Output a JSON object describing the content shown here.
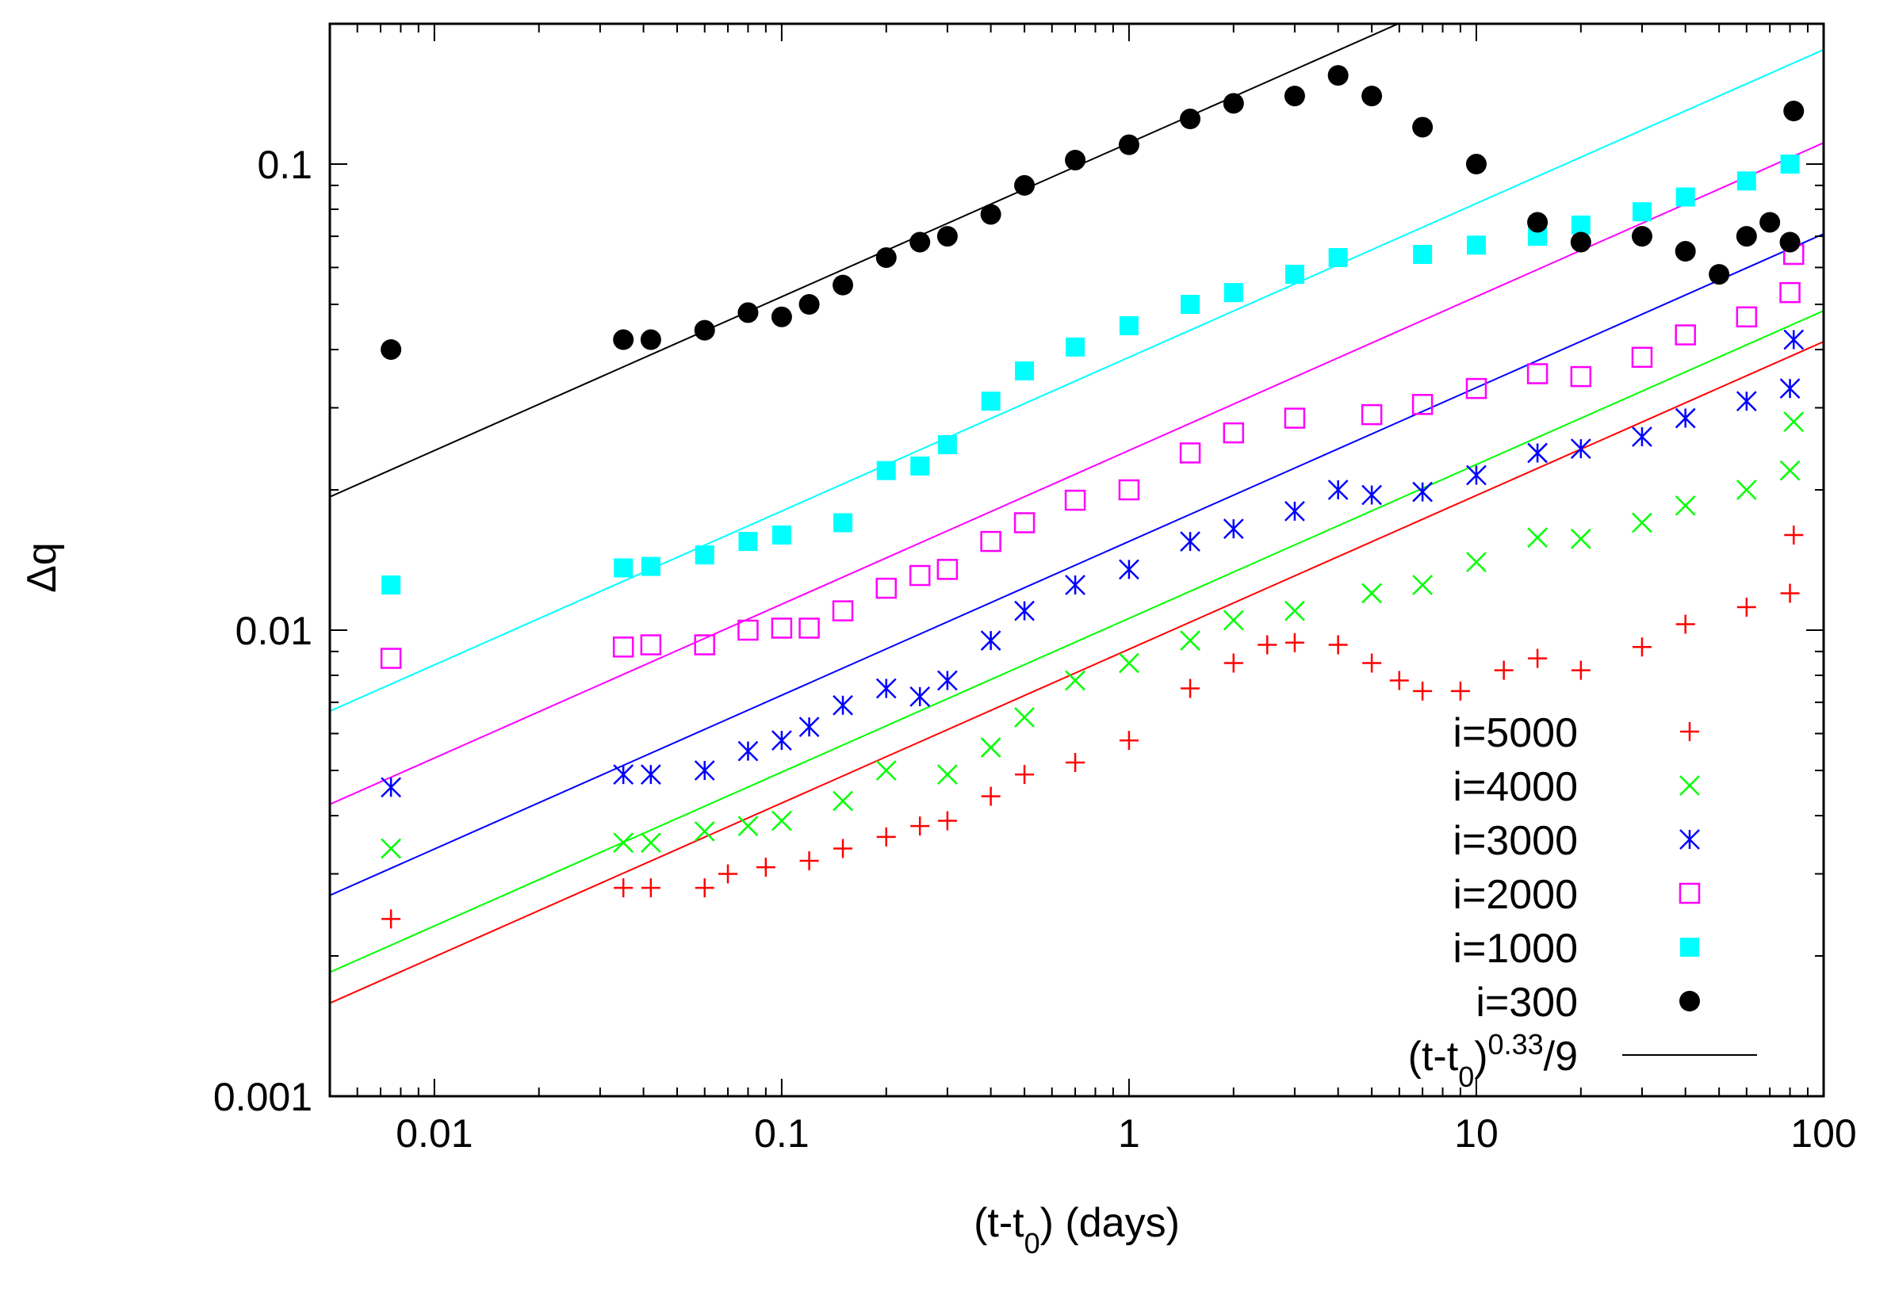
{
  "chart_data": {
    "type": "scatter",
    "xlabel": "(t-t0) (days)",
    "ylabel": "Δq",
    "x_scale": "log",
    "y_scale": "log",
    "xlim": [
      0.005,
      100
    ],
    "ylim": [
      0.001,
      0.2
    ],
    "x_ticks": [
      "0.01",
      "0.1",
      "1",
      "10",
      "100"
    ],
    "y_ticks": [
      "0.001",
      "0.01",
      "0.1"
    ],
    "grid": false,
    "legend_position": "bottom-right",
    "series": [
      {
        "name": "i=5000",
        "marker": "plus",
        "color": "#ff0000",
        "fit_coefficient": 0.0091,
        "points": [
          [
            0.0075,
            0.0024
          ],
          [
            0.035,
            0.0028
          ],
          [
            0.042,
            0.0028
          ],
          [
            0.06,
            0.0028
          ],
          [
            0.07,
            0.003
          ],
          [
            0.09,
            0.0031
          ],
          [
            0.12,
            0.0032
          ],
          [
            0.15,
            0.0034
          ],
          [
            0.2,
            0.0036
          ],
          [
            0.25,
            0.0038
          ],
          [
            0.3,
            0.0039
          ],
          [
            0.4,
            0.0044
          ],
          [
            0.5,
            0.0049
          ],
          [
            0.7,
            0.0052
          ],
          [
            1.0,
            0.0058
          ],
          [
            1.5,
            0.0075
          ],
          [
            2.0,
            0.0085
          ],
          [
            2.5,
            0.0093
          ],
          [
            3.0,
            0.0094
          ],
          [
            4.0,
            0.0093
          ],
          [
            5.0,
            0.0085
          ],
          [
            6.0,
            0.0078
          ],
          [
            7.0,
            0.0074
          ],
          [
            9.0,
            0.0074
          ],
          [
            12.0,
            0.0082
          ],
          [
            15.0,
            0.0087
          ],
          [
            20.0,
            0.0082
          ],
          [
            30.0,
            0.0092
          ],
          [
            40.0,
            0.0103
          ],
          [
            60.0,
            0.0112
          ],
          [
            80.0,
            0.012
          ],
          [
            82.0,
            0.016
          ]
        ]
      },
      {
        "name": "i=4000",
        "marker": "cross",
        "color": "#00ff00",
        "fit_coefficient": 0.0106,
        "points": [
          [
            0.0075,
            0.0034
          ],
          [
            0.035,
            0.0035
          ],
          [
            0.042,
            0.0035
          ],
          [
            0.06,
            0.0037
          ],
          [
            0.08,
            0.0038
          ],
          [
            0.1,
            0.0039
          ],
          [
            0.15,
            0.0043
          ],
          [
            0.2,
            0.005
          ],
          [
            0.3,
            0.0049
          ],
          [
            0.4,
            0.0056
          ],
          [
            0.5,
            0.0065
          ],
          [
            0.7,
            0.0078
          ],
          [
            1.0,
            0.0085
          ],
          [
            1.5,
            0.0095
          ],
          [
            2.0,
            0.0105
          ],
          [
            3.0,
            0.011
          ],
          [
            5.0,
            0.012
          ],
          [
            7.0,
            0.0125
          ],
          [
            10.0,
            0.014
          ],
          [
            15.0,
            0.0158
          ],
          [
            20.0,
            0.0157
          ],
          [
            30.0,
            0.017
          ],
          [
            40.0,
            0.0185
          ],
          [
            60.0,
            0.02
          ],
          [
            80.0,
            0.022
          ],
          [
            82.0,
            0.028
          ]
        ]
      },
      {
        "name": "i=3000",
        "marker": "star",
        "color": "#0000ff",
        "fit_coefficient": 0.0155,
        "points": [
          [
            0.0075,
            0.0046
          ],
          [
            0.035,
            0.0049
          ],
          [
            0.042,
            0.0049
          ],
          [
            0.06,
            0.005
          ],
          [
            0.08,
            0.0055
          ],
          [
            0.1,
            0.0058
          ],
          [
            0.12,
            0.0062
          ],
          [
            0.15,
            0.0069
          ],
          [
            0.2,
            0.0075
          ],
          [
            0.25,
            0.0072
          ],
          [
            0.3,
            0.0078
          ],
          [
            0.4,
            0.0095
          ],
          [
            0.5,
            0.011
          ],
          [
            0.7,
            0.0125
          ],
          [
            1.0,
            0.0135
          ],
          [
            1.5,
            0.0155
          ],
          [
            2.0,
            0.0165
          ],
          [
            3.0,
            0.018
          ],
          [
            4.0,
            0.02
          ],
          [
            5.0,
            0.0195
          ],
          [
            7.0,
            0.0198
          ],
          [
            10.0,
            0.0215
          ],
          [
            15.0,
            0.024
          ],
          [
            20.0,
            0.0245
          ],
          [
            30.0,
            0.026
          ],
          [
            40.0,
            0.0285
          ],
          [
            60.0,
            0.031
          ],
          [
            80.0,
            0.033
          ],
          [
            82.0,
            0.042
          ]
        ]
      },
      {
        "name": "i=2000",
        "marker": "square",
        "color": "#ff00ff",
        "fit_coefficient": 0.0243,
        "points": [
          [
            0.0075,
            0.0087
          ],
          [
            0.035,
            0.0092
          ],
          [
            0.042,
            0.0093
          ],
          [
            0.06,
            0.0093
          ],
          [
            0.08,
            0.01
          ],
          [
            0.1,
            0.0101
          ],
          [
            0.12,
            0.0101
          ],
          [
            0.15,
            0.011
          ],
          [
            0.2,
            0.0123
          ],
          [
            0.25,
            0.0131
          ],
          [
            0.3,
            0.0135
          ],
          [
            0.4,
            0.0155
          ],
          [
            0.5,
            0.017
          ],
          [
            0.7,
            0.019
          ],
          [
            1.0,
            0.02
          ],
          [
            1.5,
            0.024
          ],
          [
            2.0,
            0.0265
          ],
          [
            3.0,
            0.0285
          ],
          [
            5.0,
            0.029
          ],
          [
            7.0,
            0.0305
          ],
          [
            10.0,
            0.033
          ],
          [
            15.0,
            0.0355
          ],
          [
            20.0,
            0.035
          ],
          [
            30.0,
            0.0385
          ],
          [
            40.0,
            0.043
          ],
          [
            60.0,
            0.047
          ],
          [
            80.0,
            0.053
          ],
          [
            82.0,
            0.064
          ]
        ]
      },
      {
        "name": "i=1000",
        "marker": "filled-square",
        "color": "#00ffff",
        "fit_coefficient": 0.0385,
        "points": [
          [
            0.0075,
            0.0125
          ],
          [
            0.035,
            0.0136
          ],
          [
            0.042,
            0.0137
          ],
          [
            0.06,
            0.0145
          ],
          [
            0.08,
            0.0155
          ],
          [
            0.1,
            0.016
          ],
          [
            0.15,
            0.017
          ],
          [
            0.2,
            0.022
          ],
          [
            0.25,
            0.0225
          ],
          [
            0.3,
            0.025
          ],
          [
            0.4,
            0.031
          ],
          [
            0.5,
            0.036
          ],
          [
            0.7,
            0.0405
          ],
          [
            1.0,
            0.045
          ],
          [
            1.5,
            0.05
          ],
          [
            2.0,
            0.053
          ],
          [
            3.0,
            0.058
          ],
          [
            4.0,
            0.063
          ],
          [
            7.0,
            0.064
          ],
          [
            10.0,
            0.067
          ],
          [
            15.0,
            0.07
          ],
          [
            20.0,
            0.074
          ],
          [
            30.0,
            0.079
          ],
          [
            40.0,
            0.085
          ],
          [
            60.0,
            0.092
          ],
          [
            80.0,
            0.1
          ]
        ]
      },
      {
        "name": "i=300",
        "marker": "filled-circle",
        "color": "#000000",
        "fit_coefficient": 0.111,
        "points": [
          [
            0.0075,
            0.04
          ],
          [
            0.035,
            0.042
          ],
          [
            0.042,
            0.042
          ],
          [
            0.06,
            0.044
          ],
          [
            0.08,
            0.048
          ],
          [
            0.1,
            0.047
          ],
          [
            0.12,
            0.05
          ],
          [
            0.15,
            0.055
          ],
          [
            0.2,
            0.063
          ],
          [
            0.25,
            0.068
          ],
          [
            0.3,
            0.07
          ],
          [
            0.4,
            0.078
          ],
          [
            0.5,
            0.09
          ],
          [
            0.7,
            0.102
          ],
          [
            1.0,
            0.11
          ],
          [
            1.5,
            0.125
          ],
          [
            2.0,
            0.135
          ],
          [
            3.0,
            0.14
          ],
          [
            4.0,
            0.155
          ],
          [
            5.0,
            0.14
          ],
          [
            7.0,
            0.12
          ],
          [
            10.0,
            0.1
          ],
          [
            15.0,
            0.075
          ],
          [
            20.0,
            0.068
          ],
          [
            30.0,
            0.07
          ],
          [
            40.0,
            0.065
          ],
          [
            50.0,
            0.058
          ],
          [
            60.0,
            0.07
          ],
          [
            70.0,
            0.075
          ],
          [
            80.0,
            0.068
          ],
          [
            82.0,
            0.13
          ]
        ]
      }
    ],
    "fit_line_label": "(t-t0)^0.33/9",
    "fit_exponent": 0.33
  }
}
